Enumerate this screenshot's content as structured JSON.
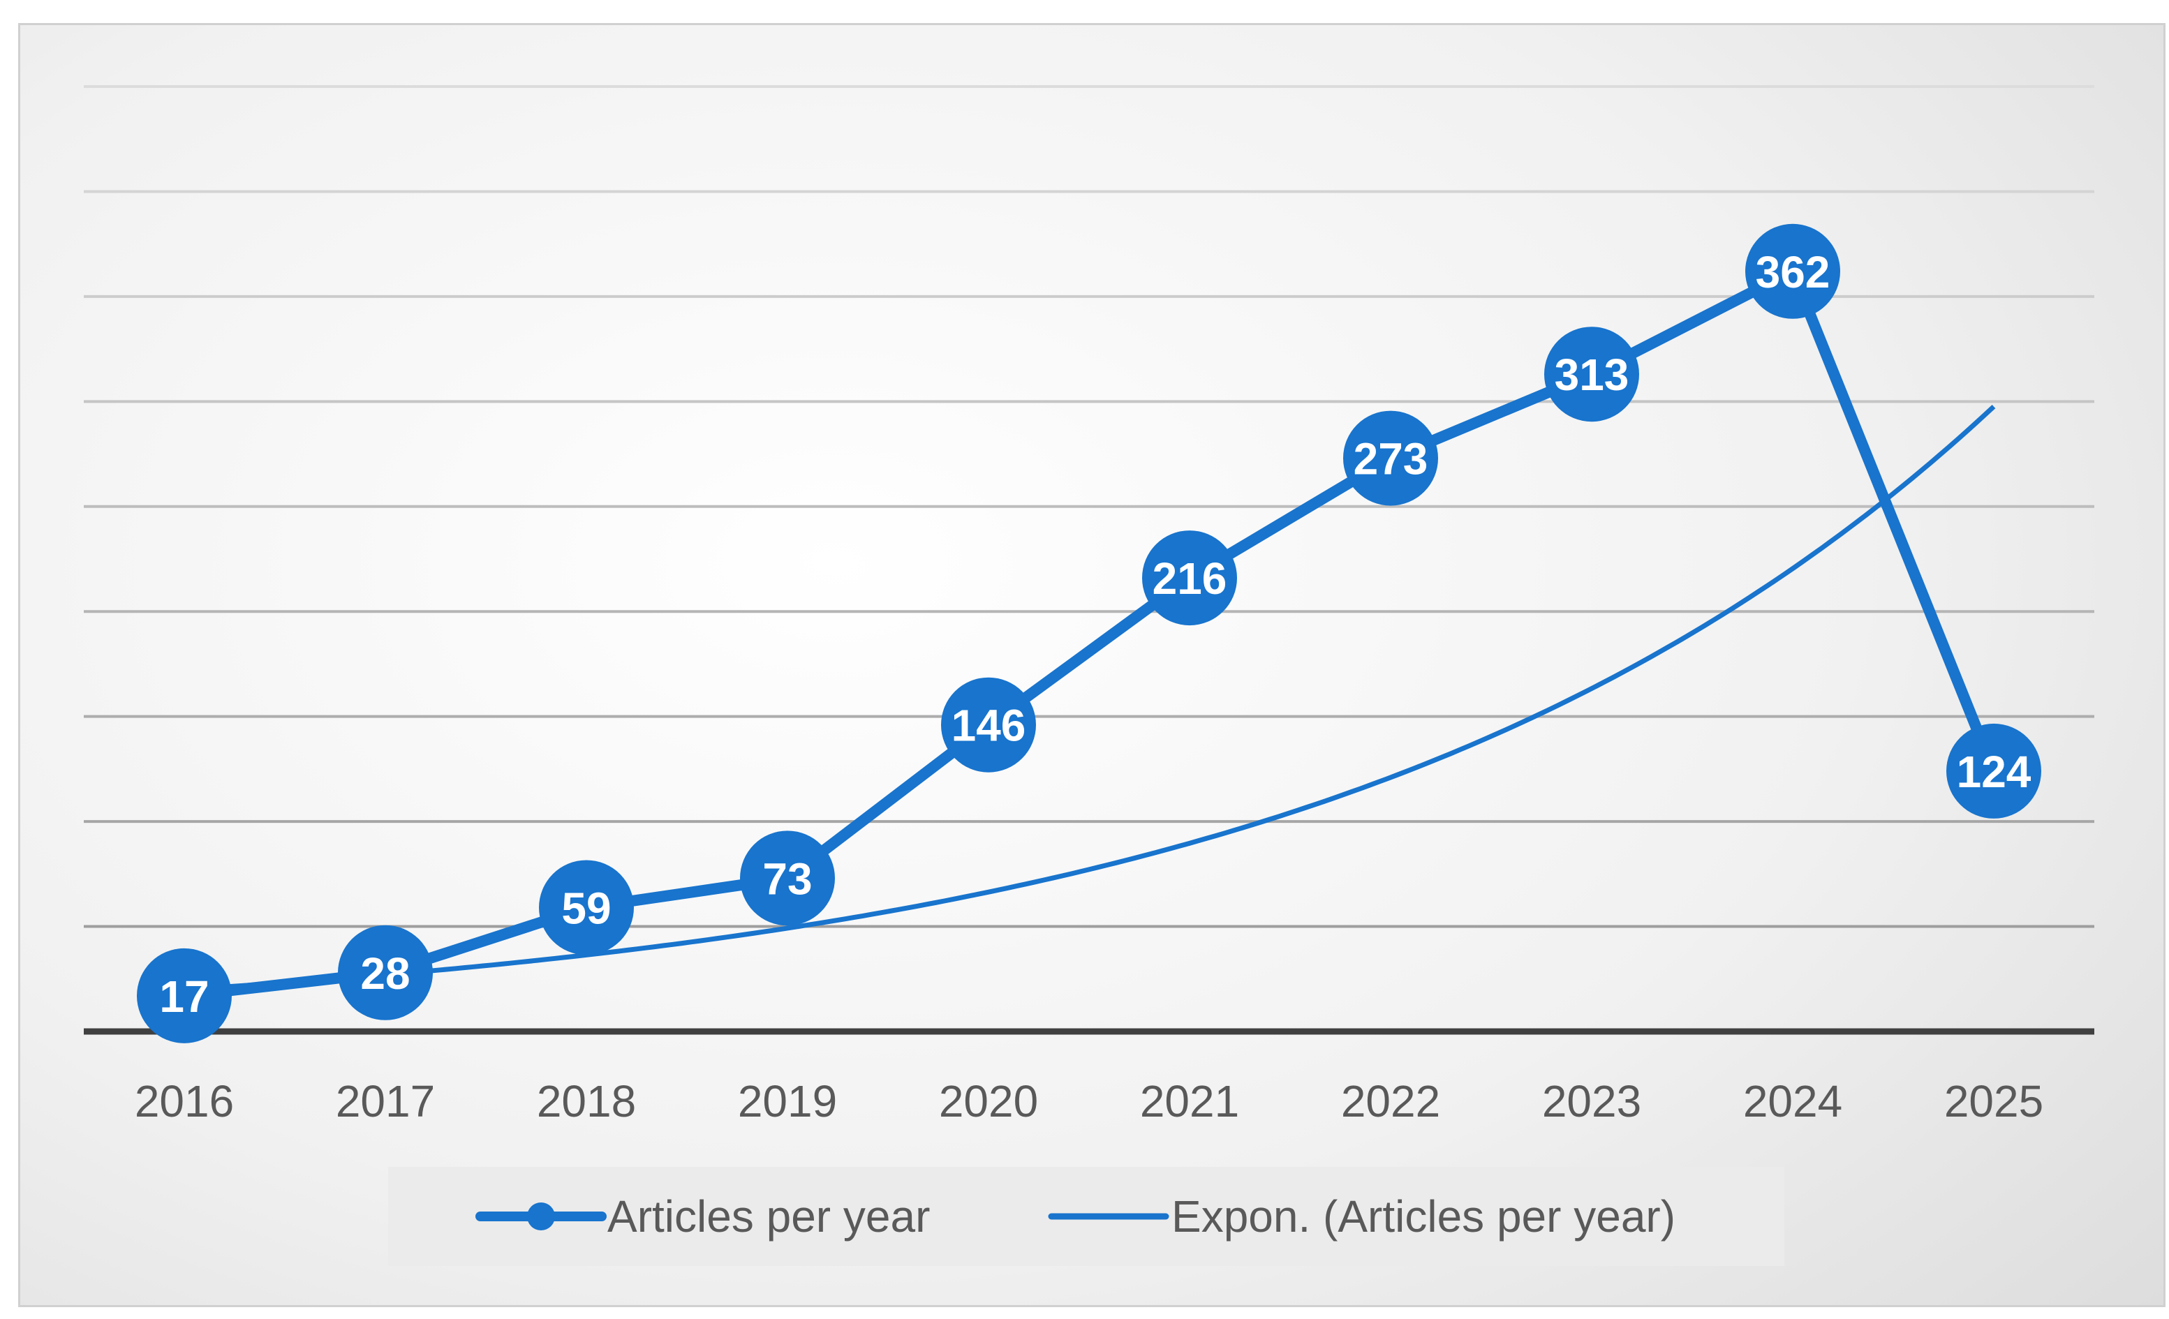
{
  "chart_data": {
    "type": "line",
    "title": "",
    "xlabel": "",
    "ylabel": "",
    "categories": [
      "2016",
      "2017",
      "2018",
      "2019",
      "2020",
      "2021",
      "2022",
      "2023",
      "2024",
      "2025"
    ],
    "ylim": [
      0,
      450
    ],
    "yticks_visible": false,
    "grid": true,
    "gridline_step": 50,
    "legend_position": "bottom",
    "series": [
      {
        "name": "Articles per year",
        "values": [
          17,
          28,
          59,
          73,
          146,
          216,
          273,
          313,
          362,
          124
        ],
        "data_labels": [
          "17",
          "28",
          "59",
          "73",
          "146",
          "216",
          "273",
          "313",
          "362",
          "124"
        ],
        "color": "#1874CD",
        "marker": "circle"
      },
      {
        "name": "Expon. (Articles per year)",
        "type": "trendline-exponential",
        "fit": {
          "a": 20.0,
          "b": 0.3
        },
        "color": "#1874CD"
      }
    ]
  }
}
